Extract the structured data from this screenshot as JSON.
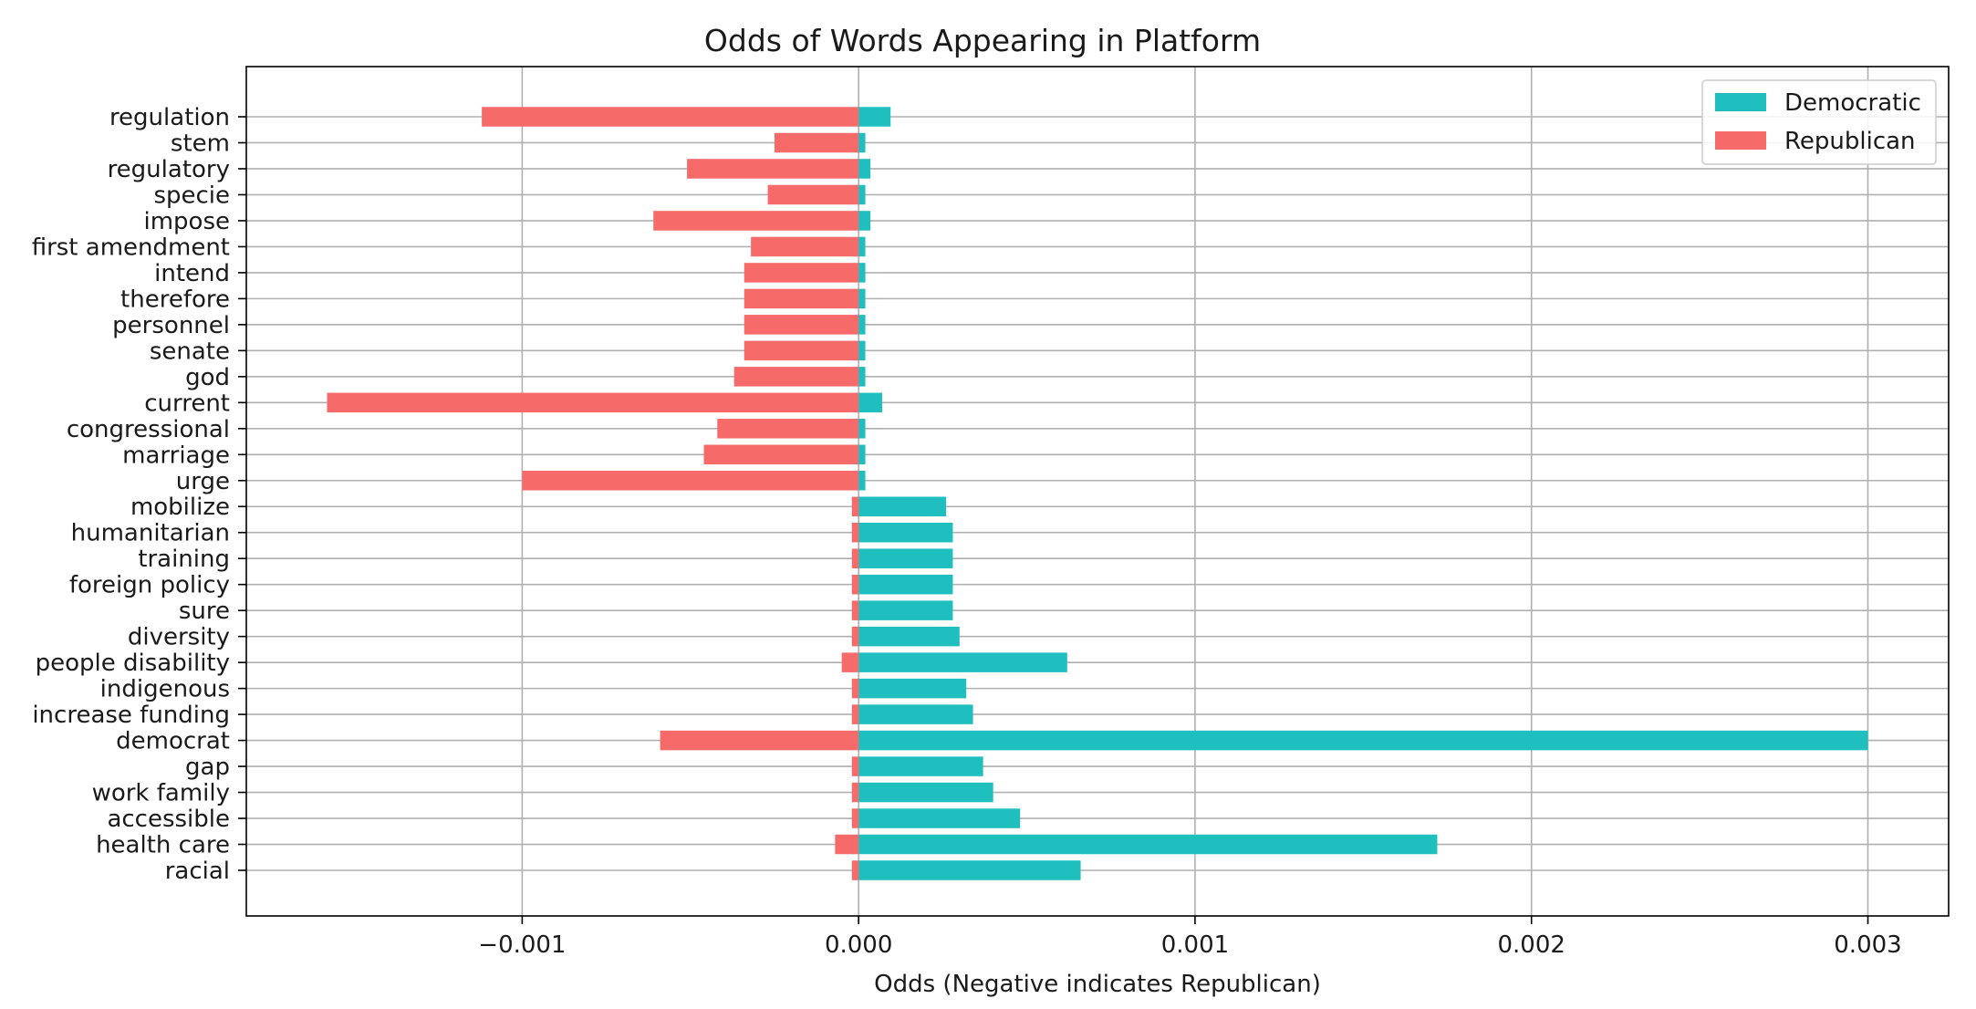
{
  "chart_data": {
    "type": "bar",
    "orientation": "horizontal",
    "title": "Odds of Words Appearing in Platform",
    "xlabel": "Odds (Negative indicates Republican)",
    "ylabel": "",
    "xlim": [
      -0.00182,
      0.00324
    ],
    "xticks": [
      -0.001,
      0.0,
      0.001,
      0.002,
      0.003
    ],
    "xtick_labels": [
      "−0.001",
      "0.000",
      "0.001",
      "0.002",
      "0.003"
    ],
    "grid": true,
    "legend_position": "top-right",
    "categories": [
      "regulation",
      "stem",
      "regulatory",
      "specie",
      "impose",
      "first amendment",
      "intend",
      "therefore",
      "personnel",
      "senate",
      "god",
      "current",
      "congressional",
      "marriage",
      "urge",
      "mobilize",
      "humanitarian",
      "training",
      "foreign policy",
      "sure",
      "diversity",
      "people disability",
      "indigenous",
      "increase funding",
      "democrat",
      "gap",
      "work family",
      "accessible",
      "health care",
      "racial"
    ],
    "series": [
      {
        "name": "Democratic",
        "color": "#1fbfbf",
        "values": [
          9.5e-05,
          2e-05,
          3.5e-05,
          2e-05,
          3.5e-05,
          2e-05,
          2e-05,
          2e-05,
          2e-05,
          2e-05,
          2e-05,
          7e-05,
          2e-05,
          2e-05,
          2e-05,
          0.00026,
          0.00028,
          0.00028,
          0.00028,
          0.00028,
          0.0003,
          0.00062,
          0.00032,
          0.00034,
          0.003,
          0.00037,
          0.0004,
          0.00048,
          0.00172,
          0.00066
        ]
      },
      {
        "name": "Republican",
        "color": "#f66a6a",
        "values": [
          -0.00112,
          -0.00025,
          -0.00051,
          -0.00027,
          -0.00061,
          -0.00032,
          -0.00034,
          -0.00034,
          -0.00034,
          -0.00034,
          -0.00037,
          -0.00158,
          -0.00042,
          -0.00046,
          -0.001,
          -2e-05,
          -2e-05,
          -2e-05,
          -2e-05,
          -2e-05,
          -2e-05,
          -5e-05,
          -2e-05,
          -2e-05,
          -0.00059,
          -2e-05,
          -2e-05,
          -2e-05,
          -7e-05,
          -2e-05
        ]
      }
    ]
  }
}
